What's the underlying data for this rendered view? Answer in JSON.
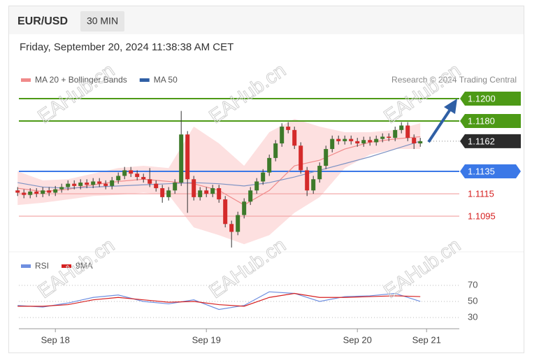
{
  "chart_data": {
    "type": "candlestick",
    "title": "EUR/USD",
    "timeframe": "30 MIN",
    "subtitle": "Friday, September 20, 2024 11:38:38 AM CET",
    "credit": "Research © 2024 Trading Central",
    "watermark": "EAHub.cn",
    "xlim": [
      0.2,
      70.2
    ],
    "xticks": [
      {
        "value": 6,
        "label": "Sep 18"
      },
      {
        "value": 30,
        "label": "Sep 19"
      },
      {
        "value": 54,
        "label": "Sep 20"
      },
      {
        "value": 65,
        "label": "Sep 21"
      }
    ],
    "ylim": [
      1.10663,
      1.12069
    ],
    "up_color": "#3d7a2a",
    "down_color": "#d42a2a",
    "open": [
      1.1118,
      1.1116,
      1.1114,
      1.1117,
      1.1115,
      1.1118,
      1.1116,
      1.1119,
      1.1121,
      1.1124,
      1.1122,
      1.1125,
      1.1123,
      1.1126,
      1.1124,
      1.1122,
      1.1127,
      1.1131,
      1.1136,
      1.1133,
      1.113,
      1.1128,
      1.1124,
      1.112,
      1.1112,
      1.1118,
      1.1125,
      1.1168,
      1.1128,
      1.1112,
      1.1118,
      1.1115,
      1.112,
      1.111,
      1.1088,
      1.1081,
      1.1096,
      1.1108,
      1.1118,
      1.1126,
      1.1134,
      1.1147,
      1.116,
      1.1175,
      1.1172,
      1.1158,
      1.1136,
      1.1118,
      1.1128,
      1.114,
      1.1155,
      1.1164,
      1.1162,
      1.1164,
      1.1162,
      1.116,
      1.1163,
      1.1161,
      1.1164,
      1.1166,
      1.1165,
      1.1172,
      1.1176,
      1.1165,
      1.116
    ],
    "high": [
      1.1121,
      1.1119,
      1.112,
      1.112,
      1.1121,
      1.1121,
      1.1122,
      1.1124,
      1.1127,
      1.1127,
      1.1128,
      1.1128,
      1.1129,
      1.1129,
      1.1127,
      1.113,
      1.1134,
      1.1139,
      1.1139,
      1.1136,
      1.1133,
      1.1138,
      1.1127,
      1.1123,
      1.1121,
      1.1128,
      1.1189,
      1.1171,
      1.1131,
      1.1121,
      1.1121,
      1.1123,
      1.1123,
      1.1113,
      1.1091,
      1.1099,
      1.1111,
      1.1121,
      1.1129,
      1.1137,
      1.115,
      1.1163,
      1.1178,
      1.1179,
      1.1175,
      1.1161,
      1.1139,
      1.1131,
      1.1143,
      1.1158,
      1.1167,
      1.1167,
      1.1167,
      1.1167,
      1.1165,
      1.1166,
      1.1166,
      1.1167,
      1.1169,
      1.1169,
      1.1175,
      1.1179,
      1.1179,
      1.1168,
      1.1165
    ],
    "low": [
      1.1113,
      1.1111,
      1.1111,
      1.1112,
      1.1112,
      1.1113,
      1.1113,
      1.1116,
      1.1118,
      1.1119,
      1.1119,
      1.112,
      1.112,
      1.1121,
      1.1119,
      1.1119,
      1.1124,
      1.1128,
      1.113,
      1.1127,
      1.1125,
      1.1121,
      1.1117,
      1.1107,
      1.1109,
      1.1115,
      1.1122,
      1.1098,
      1.1109,
      1.1109,
      1.1112,
      1.1112,
      1.1107,
      1.1085,
      1.1067,
      1.1078,
      1.1093,
      1.1105,
      1.1115,
      1.1123,
      1.1131,
      1.1144,
      1.1157,
      1.1169,
      1.1155,
      1.1133,
      1.1113,
      1.1115,
      1.1125,
      1.1137,
      1.1152,
      1.1159,
      1.1159,
      1.1159,
      1.1157,
      1.1157,
      1.1158,
      1.1158,
      1.1161,
      1.1162,
      1.1162,
      1.1169,
      1.1162,
      1.1155,
      1.1157
    ],
    "close": [
      1.1116,
      1.1114,
      1.1117,
      1.1115,
      1.1118,
      1.1116,
      1.1119,
      1.1121,
      1.1124,
      1.1122,
      1.1125,
      1.1123,
      1.1126,
      1.1124,
      1.1122,
      1.1127,
      1.1131,
      1.1136,
      1.1133,
      1.113,
      1.1128,
      1.1124,
      1.112,
      1.1112,
      1.1118,
      1.1125,
      1.1168,
      1.1128,
      1.1112,
      1.1118,
      1.1115,
      1.112,
      1.111,
      1.1088,
      1.1081,
      1.1096,
      1.1108,
      1.1118,
      1.1126,
      1.1134,
      1.1147,
      1.116,
      1.1175,
      1.1172,
      1.1158,
      1.1136,
      1.1118,
      1.1128,
      1.114,
      1.1155,
      1.1164,
      1.1162,
      1.1164,
      1.1162,
      1.116,
      1.1163,
      1.1161,
      1.1164,
      1.1166,
      1.1165,
      1.1172,
      1.1176,
      1.1165,
      1.116,
      1.1162
    ],
    "overlays": [
      {
        "name": "MA 20 + Bollinger Bands",
        "color": "#f08a8a",
        "band_color": "#fde0e0",
        "x": [
          0,
          4,
          8,
          12,
          16,
          20,
          24,
          28,
          32,
          36,
          40,
          44,
          48,
          52,
          56,
          60,
          64
        ],
        "values": [
          1.112,
          1.1117,
          1.1119,
          1.1123,
          1.1126,
          1.1128,
          1.1126,
          1.1124,
          1.1118,
          1.1105,
          1.1118,
          1.114,
          1.1145,
          1.1155,
          1.1161,
          1.1164,
          1.1166
        ],
        "upper": [
          1.1135,
          1.1127,
          1.1128,
          1.1133,
          1.1138,
          1.114,
          1.1138,
          1.1175,
          1.116,
          1.114,
          1.117,
          1.1182,
          1.1175,
          1.117,
          1.117,
          1.1172,
          1.1178
        ],
        "lower": [
          1.1105,
          1.1107,
          1.111,
          1.1113,
          1.1114,
          1.1116,
          1.1114,
          1.1085,
          1.1078,
          1.107,
          1.1078,
          1.1098,
          1.1112,
          1.1138,
          1.115,
          1.1155,
          1.1155
        ]
      },
      {
        "name": "MA 50",
        "color": "#2f5fa5",
        "line_color": "#7f94c4",
        "x": [
          0,
          4,
          8,
          12,
          16,
          20,
          24,
          28,
          32,
          36,
          40,
          44,
          48,
          52,
          56,
          60,
          64
        ],
        "values": [
          1.1125,
          1.1121,
          1.112,
          1.1121,
          1.1122,
          1.1123,
          1.1124,
          1.1125,
          1.1124,
          1.1122,
          1.1125,
          1.113,
          1.1136,
          1.1142,
          1.1148,
          1.1155,
          1.1162
        ]
      }
    ],
    "levels": [
      {
        "value": 1.12,
        "label": "1.1200",
        "color": "#4d9a16",
        "style": "box"
      },
      {
        "value": 1.118,
        "label": "1.1180",
        "color": "#4d9a16",
        "style": "box"
      },
      {
        "value": 1.1162,
        "label": "1.1162",
        "color": "#2b2b2b",
        "style": "current"
      },
      {
        "value": 1.1135,
        "label": "1.1135",
        "color": "#3b78e7",
        "style": "box"
      },
      {
        "value": 1.1115,
        "label": "1.1115",
        "color": "#d62020",
        "style": "text"
      },
      {
        "value": 1.1095,
        "label": "1.1095",
        "color": "#d62020",
        "style": "text"
      }
    ],
    "rsi": {
      "ylim": [
        20.4,
        81.3
      ],
      "yticks": [
        70,
        50,
        30
      ],
      "series": [
        {
          "name": "RSI",
          "color": "#6f8fe0",
          "x": [
            0,
            4,
            8,
            12,
            16,
            20,
            24,
            28,
            32,
            36,
            40,
            44,
            48,
            52,
            56,
            60,
            64
          ],
          "values": [
            45,
            43,
            48,
            55,
            58,
            50,
            47,
            52,
            40,
            45,
            62,
            60,
            50,
            56,
            57,
            60,
            50
          ]
        },
        {
          "name": "9MA",
          "color": "#d62020",
          "x": [
            0,
            4,
            8,
            12,
            16,
            20,
            24,
            28,
            32,
            36,
            40,
            44,
            48,
            52,
            56,
            60,
            64
          ],
          "values": [
            44,
            44,
            46,
            52,
            55,
            52,
            49,
            50,
            46,
            44,
            55,
            60,
            55,
            55,
            56,
            57,
            56
          ]
        }
      ]
    }
  }
}
